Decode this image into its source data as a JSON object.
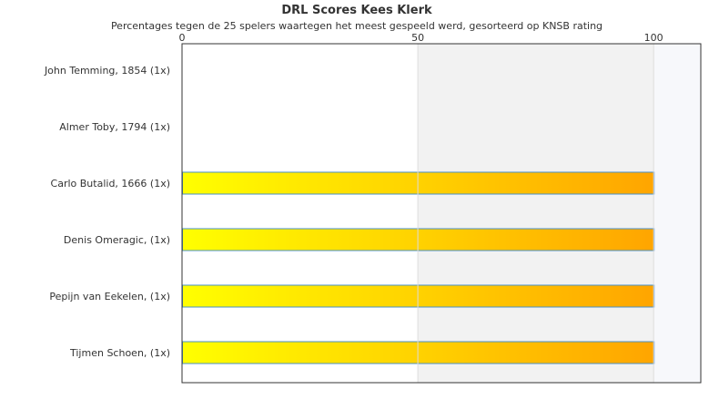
{
  "chart_data": {
    "type": "bar",
    "orientation": "horizontal",
    "title": "DRL Scores Kees Klerk",
    "subtitle": "Percentages tegen de 25 spelers waartegen het meest gespeeld werd, gesorteerd op KNSB rating",
    "xlabel": "",
    "ylabel": "",
    "xlim": [
      0,
      110
    ],
    "xticks": [
      0,
      50,
      100
    ],
    "grid": true,
    "categories": [
      "John Temming, 1854 (1x)",
      "Almer Toby, 1794 (1x)",
      "Carlo Butalid, 1666 (1x)",
      "Denis Omeragic,  (1x)",
      "Pepijn van Eekelen,  (1x)",
      "Tijmen Schoen,  (1x)"
    ],
    "values": [
      0,
      0,
      100,
      100,
      100,
      100
    ],
    "colors": {
      "bar_start": "#ffff00",
      "bar_end": "#ffa500",
      "bar_border": "#4a90c8",
      "band_shade": "#f2f2f2",
      "right_shade": "#f7f8fb"
    }
  }
}
